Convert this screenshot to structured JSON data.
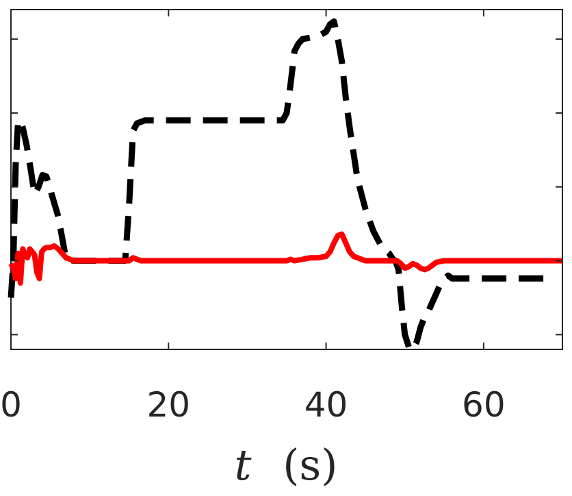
{
  "chart_data": {
    "type": "line",
    "title": "",
    "xlabel": "t (s)",
    "xlabel_var": "t",
    "xlabel_unit": "(s)",
    "ylabel": "",
    "xlim": [
      0,
      70
    ],
    "ylim": [
      -0.6,
      1.7
    ],
    "xticks": [
      0,
      20,
      40,
      60
    ],
    "xtick_labels": [
      "0",
      "20",
      "40",
      "60"
    ],
    "yticks": [
      -0.5,
      0,
      0.5,
      1,
      1.5
    ],
    "grid": false,
    "series": [
      {
        "style": "dashed",
        "color": "#000000",
        "x": [
          0,
          0.3,
          0.6,
          0.9,
          1.2,
          1.5,
          2.0,
          2.5,
          3.0,
          3.5,
          4.0,
          4.5,
          5.0,
          6.0,
          7.0,
          8.0,
          10.0,
          14.0,
          14.5,
          15.0,
          15.5,
          16.0,
          17.0,
          20.0,
          30.0,
          34.5,
          35.0,
          35.5,
          36.0,
          36.5,
          37.0,
          38.0,
          39.0,
          40.0,
          40.5,
          41.0,
          41.5,
          42.0,
          42.5,
          43.0,
          44.0,
          45.0,
          46.0,
          47.0,
          48.0,
          48.5,
          48.8,
          49.2,
          49.6,
          50.0,
          50.3,
          50.6,
          51.0,
          51.5,
          52.0,
          52.5,
          53.0,
          53.5,
          54.0,
          54.5,
          55.0,
          55.5,
          56.0,
          58.0,
          62.0,
          66.0,
          69.0
        ],
        "y": [
          -0.25,
          0.0,
          0.65,
          0.94,
          0.95,
          0.9,
          0.78,
          0.62,
          0.45,
          0.5,
          0.58,
          0.57,
          0.48,
          0.3,
          0.01,
          0.0,
          0.0,
          0.0,
          0.0,
          0.38,
          0.88,
          0.93,
          0.95,
          0.95,
          0.95,
          0.95,
          1.0,
          1.2,
          1.42,
          1.47,
          1.5,
          1.51,
          1.52,
          1.55,
          1.6,
          1.62,
          1.5,
          1.35,
          1.1,
          0.9,
          0.55,
          0.35,
          0.2,
          0.1,
          0.05,
          0.01,
          0.0,
          -0.06,
          -0.3,
          -0.5,
          -0.55,
          -0.6,
          -0.6,
          -0.55,
          -0.45,
          -0.38,
          -0.34,
          -0.28,
          -0.22,
          -0.16,
          -0.12,
          -0.1,
          -0.12,
          -0.12,
          -0.12,
          -0.12,
          -0.12
        ]
      },
      {
        "style": "solid",
        "color": "#ff0000",
        "x": [
          0,
          0.3,
          0.6,
          0.9,
          1.2,
          1.5,
          1.8,
          2.1,
          2.4,
          2.7,
          3.0,
          3.3,
          3.6,
          3.9,
          4.2,
          4.5,
          5.0,
          5.5,
          6.0,
          7.0,
          8.0,
          10.0,
          14.0,
          15.0,
          15.5,
          16.0,
          16.5,
          17.0,
          20.0,
          30.0,
          34.0,
          35.0,
          35.5,
          36.0,
          37.0,
          38.0,
          39.0,
          40.0,
          40.5,
          41.0,
          41.5,
          42.0,
          42.5,
          43.0,
          43.5,
          44.0,
          44.5,
          45.0,
          46.0,
          47.0,
          48.0,
          49.0,
          49.5,
          50.0,
          50.5,
          51.0,
          51.5,
          52.0,
          52.5,
          53.0,
          53.5,
          54.0,
          55.0,
          56.0,
          58.0,
          62.0,
          66.0,
          70.0
        ],
        "y": [
          -0.02,
          -0.05,
          -0.12,
          0.05,
          -0.15,
          0.08,
          0.04,
          0.02,
          0.08,
          0.06,
          0.04,
          -0.08,
          -0.12,
          0.06,
          0.08,
          0.09,
          0.09,
          0.1,
          0.08,
          0.02,
          0.0,
          0.0,
          0.0,
          0.0,
          0.02,
          0.01,
          0.0,
          0.0,
          0.0,
          0.0,
          0.0,
          0.0,
          0.01,
          0.0,
          0.01,
          0.02,
          0.02,
          0.03,
          0.06,
          0.12,
          0.17,
          0.18,
          0.12,
          0.06,
          0.03,
          0.02,
          0.01,
          0.0,
          0.0,
          0.0,
          0.0,
          0.0,
          -0.02,
          -0.05,
          -0.04,
          -0.02,
          -0.03,
          -0.05,
          -0.06,
          -0.05,
          -0.03,
          -0.01,
          0.0,
          0.0,
          0.0,
          0.0,
          0.0,
          0.0
        ]
      }
    ]
  }
}
